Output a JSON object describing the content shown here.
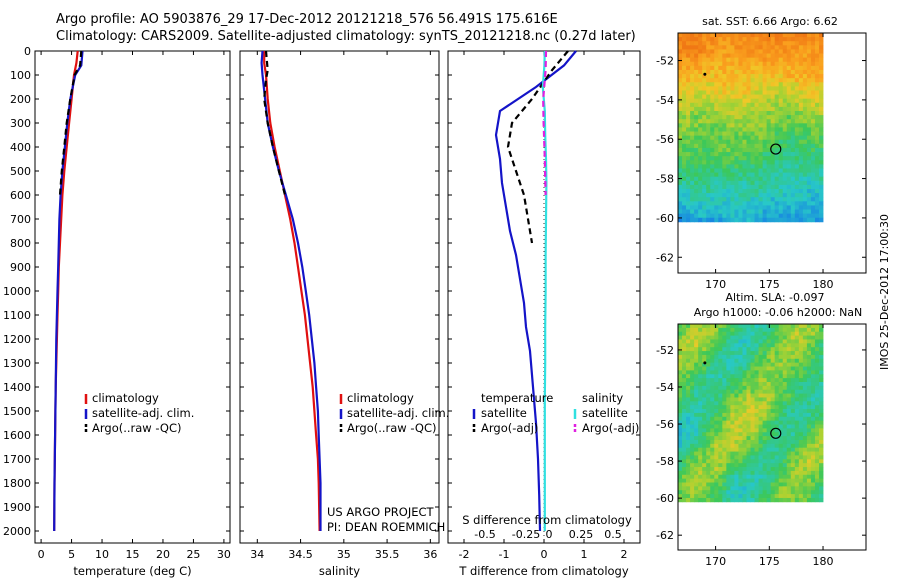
{
  "header": {
    "title_line1": "Argo profile: AO 5903876_29 17-Dec-2012 20121218_576 56.491S 175.616E",
    "title_line2": "Climatology: CARS2009. Satellite-adjusted climatology: synTS_20121218.nc (0.27d later)"
  },
  "stamp": "IMOS 25-Dec-2012 17:00:30",
  "colors": {
    "climatology": "#e01010",
    "satellite": "#1414c8",
    "argo": "#000000",
    "satellite_salinity": "#30e0e0",
    "argo_salinity": "#e020e0"
  },
  "chart_data": [
    {
      "type": "line",
      "id": "temperature-profile",
      "xlabel": "temperature (deg C)",
      "ylabel": "",
      "xlim": [
        -1,
        31
      ],
      "ylim": [
        2050,
        0
      ],
      "xticks": [
        0,
        5,
        10,
        15,
        20,
        25,
        30
      ],
      "yticks": [
        0,
        100,
        200,
        300,
        400,
        500,
        600,
        700,
        800,
        900,
        1000,
        1100,
        1200,
        1300,
        1400,
        1500,
        1600,
        1700,
        1800,
        1900,
        2000
      ],
      "legend": [
        "climatology",
        "satellite-adj. clim.",
        "Argo(..raw -QC)"
      ],
      "series": [
        {
          "name": "climatology",
          "style": "solid",
          "color": "#e01010",
          "x": [
            6.0,
            5.8,
            5.4,
            5.0,
            4.6,
            4.2,
            3.8,
            3.5,
            3.3,
            3.1,
            2.9,
            2.8,
            2.7,
            2.6,
            2.5,
            2.4,
            2.35,
            2.3,
            2.25,
            2.2,
            2.15
          ],
          "y": [
            0,
            50,
            100,
            200,
            300,
            400,
            500,
            600,
            700,
            800,
            900,
            1000,
            1100,
            1200,
            1300,
            1400,
            1500,
            1600,
            1700,
            1800,
            2000
          ]
        },
        {
          "name": "satellite-adj. clim.",
          "style": "solid",
          "color": "#1414c8",
          "x": [
            6.8,
            6.6,
            5.6,
            4.8,
            4.3,
            3.9,
            3.5,
            3.2,
            3.0,
            2.9,
            2.8,
            2.7,
            2.6,
            2.5,
            2.45,
            2.4,
            2.35,
            2.3,
            2.25,
            2.2,
            2.15
          ],
          "y": [
            0,
            60,
            100,
            200,
            300,
            400,
            500,
            600,
            700,
            800,
            900,
            1000,
            1100,
            1200,
            1300,
            1400,
            1500,
            1600,
            1700,
            1800,
            2000
          ]
        },
        {
          "name": "Argo(..raw -QC)",
          "style": "dashed",
          "color": "#000000",
          "x": [
            6.6,
            6.4,
            5.5,
            4.8,
            4.2,
            3.8,
            3.4,
            3.1
          ],
          "y": [
            0,
            60,
            100,
            200,
            300,
            400,
            500,
            600
          ]
        }
      ]
    },
    {
      "type": "line",
      "id": "salinity-profile",
      "xlabel": "salinity",
      "xlim": [
        33.8,
        36.1
      ],
      "ylim": [
        2050,
        0
      ],
      "xticks": [
        34,
        34.5,
        35,
        35.5,
        36
      ],
      "legend": [
        "climatology",
        "satellite-adj. clim.",
        "Argo(..raw -QC)"
      ],
      "annotation_line1": "US ARGO PROJECT",
      "annotation_line2": "PI: DEAN ROEMMICH",
      "series": [
        {
          "name": "climatology",
          "style": "solid",
          "color": "#e01010",
          "x": [
            34.08,
            34.08,
            34.1,
            34.12,
            34.15,
            34.2,
            34.26,
            34.32,
            34.38,
            34.43,
            34.47,
            34.51,
            34.55,
            34.58,
            34.61,
            34.64,
            34.66,
            34.68,
            34.7,
            34.71,
            34.72
          ],
          "y": [
            0,
            50,
            100,
            200,
            300,
            400,
            500,
            600,
            700,
            800,
            900,
            1000,
            1100,
            1200,
            1300,
            1400,
            1500,
            1600,
            1700,
            1800,
            2000
          ]
        },
        {
          "name": "satellite-adj. clim.",
          "style": "solid",
          "color": "#1414c8",
          "x": [
            34.06,
            34.05,
            34.06,
            34.09,
            34.12,
            34.18,
            34.25,
            34.33,
            34.41,
            34.47,
            34.52,
            34.56,
            34.6,
            34.63,
            34.66,
            34.68,
            34.7,
            34.71,
            34.72,
            34.73,
            34.73
          ],
          "y": [
            0,
            50,
            100,
            200,
            300,
            400,
            500,
            600,
            700,
            800,
            900,
            1000,
            1100,
            1200,
            1300,
            1400,
            1500,
            1600,
            1700,
            1800,
            2000
          ]
        },
        {
          "name": "Argo(..raw -QC)",
          "style": "dashed",
          "color": "#000000",
          "x": [
            34.1,
            34.12,
            34.1,
            34.08,
            34.12,
            34.18,
            34.25,
            34.32
          ],
          "y": [
            0,
            80,
            120,
            200,
            300,
            400,
            500,
            600
          ]
        }
      ]
    },
    {
      "type": "line",
      "id": "difference-profile",
      "xlabel": "T difference from climatology",
      "xlabel_top": "S difference from climatology",
      "xlim": [
        -2.4,
        2.4
      ],
      "ylim": [
        2050,
        0
      ],
      "xticks": [
        -2,
        -1,
        0,
        1,
        2
      ],
      "xticks_top": [
        "-0.5",
        "-0.25",
        "0",
        "0.25",
        "0.5"
      ],
      "legend_temperature_title": "temperature",
      "legend_salinity_title": "salinity",
      "legend": [
        "satellite",
        "Argo(-adj)",
        "satellite",
        "Argo(-adj)"
      ],
      "series": [
        {
          "name": "temperature satellite",
          "style": "solid",
          "color": "#1414c8",
          "x": [
            0.8,
            0.5,
            -0.2,
            -1.1,
            -1.2,
            -1.1,
            -1.05,
            -0.95,
            -0.85,
            -0.7,
            -0.6,
            -0.5,
            -0.45,
            -0.35,
            -0.3,
            -0.25,
            -0.2,
            -0.15,
            -0.12,
            -0.1
          ],
          "y": [
            0,
            60,
            150,
            250,
            350,
            450,
            550,
            650,
            750,
            850,
            950,
            1050,
            1150,
            1250,
            1350,
            1450,
            1550,
            1700,
            1850,
            2000
          ]
        },
        {
          "name": "temperature Argo(-adj)",
          "style": "dashed",
          "color": "#000000",
          "x": [
            0.6,
            0.2,
            -0.3,
            -0.8,
            -0.9,
            -0.7,
            -0.5,
            -0.3
          ],
          "y": [
            0,
            80,
            200,
            300,
            400,
            500,
            600,
            800
          ]
        },
        {
          "name": "salinity satellite",
          "style": "solid",
          "color": "#30e0e0",
          "x": [
            0.02,
            0.01,
            -0.03,
            0.02,
            0.03,
            0.05,
            0.06,
            0.05,
            0.04,
            0.04,
            0.03,
            0.03,
            0.02,
            0.02,
            0.02,
            0.02,
            0.02
          ],
          "y": [
            0,
            60,
            150,
            250,
            350,
            450,
            550,
            700,
            850,
            1000,
            1150,
            1300,
            1450,
            1600,
            1750,
            1900,
            2000
          ]
        },
        {
          "name": "salinity Argo(-adj)",
          "style": "dashed",
          "color": "#e020e0",
          "x": [
            0.05,
            0.04,
            -0.02,
            -0.01,
            0.02,
            0.04
          ],
          "y": [
            0,
            80,
            200,
            300,
            450,
            600
          ]
        }
      ]
    },
    {
      "type": "heatmap",
      "id": "sst-map",
      "title": "sat. SST: 6.66 Argo: 6.62",
      "xticks": [
        170,
        175,
        180
      ],
      "yticks": [
        -52,
        -54,
        -56,
        -58,
        -60,
        -62
      ],
      "xlim": [
        166.5,
        184
      ],
      "ylim": [
        -62.8,
        -50.6
      ],
      "data_extent": {
        "lon": [
          166.5,
          180
        ],
        "lat": [
          -60.2,
          -50.6
        ]
      },
      "argo_position": {
        "lon": 175.6,
        "lat": -56.5
      },
      "marker_position": {
        "lon": 169.0,
        "lat": -52.7
      }
    },
    {
      "type": "heatmap",
      "id": "sla-map",
      "title_line1": "Altim. SLA: -0.097",
      "title_line2": "Argo h1000: -0.06 h2000: NaN",
      "xticks": [
        170,
        175,
        180
      ],
      "yticks": [
        -52,
        -54,
        -56,
        -58,
        -60,
        -62
      ],
      "xlim": [
        166.5,
        184
      ],
      "ylim": [
        -62.8,
        -50.6
      ],
      "data_extent": {
        "lon": [
          166.5,
          180
        ],
        "lat": [
          -60.2,
          -50.6
        ]
      },
      "argo_position": {
        "lon": 175.6,
        "lat": -56.5
      },
      "marker_position": {
        "lon": 169.0,
        "lat": -52.7
      }
    }
  ]
}
